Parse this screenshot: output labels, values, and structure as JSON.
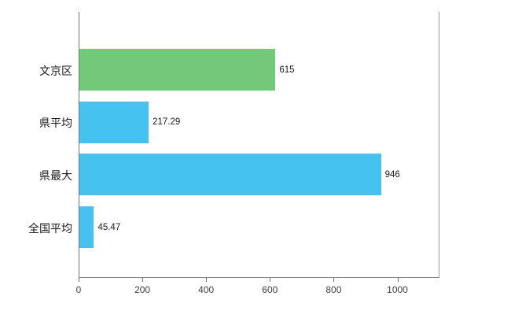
{
  "chart_data": {
    "type": "bar",
    "orientation": "horizontal",
    "title": "",
    "xlabel": "",
    "ylabel": "",
    "categories": [
      "文京区",
      "県平均",
      "県最大",
      "全国平均"
    ],
    "values": [
      615,
      217.29,
      946,
      45.47
    ],
    "value_labels": [
      "615",
      "217.29",
      "946",
      "45.47"
    ],
    "bar_colors": [
      "#74c87a",
      "#45c2f0",
      "#45c2f0",
      "#45c2f0"
    ],
    "x_ticks": [
      0,
      200,
      400,
      600,
      800,
      1000
    ],
    "x_tick_labels": [
      "0",
      "200",
      "400",
      "600",
      "800",
      "1000"
    ],
    "xlim": [
      0,
      1127
    ],
    "grid": "off",
    "legend": "none"
  },
  "colors": {
    "green": "#74c87a",
    "blue": "#45c2f0",
    "axis": "#757575",
    "text": "#1a1a1a",
    "background": "#ffffff"
  }
}
